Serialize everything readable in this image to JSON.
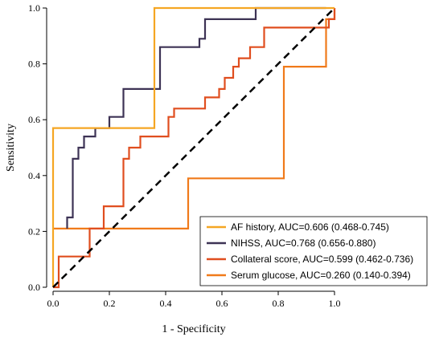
{
  "chart_data": {
    "type": "line",
    "xlabel": "1 - Specificity",
    "ylabel": "Sensitivity",
    "xlim": [
      0,
      1
    ],
    "ylim": [
      0,
      1
    ],
    "xticks": [
      "0.0",
      "0.2",
      "0.4",
      "0.6",
      "0.8",
      "1.0"
    ],
    "yticks": [
      "0.0",
      "0.2",
      "0.4",
      "0.6",
      "0.8",
      "1.0"
    ],
    "grid": false,
    "legend_position": "bottom-right",
    "reference_line": {
      "style": "dashed",
      "color": "#000000",
      "points": [
        [
          0,
          0
        ],
        [
          1,
          1
        ]
      ]
    },
    "series": [
      {
        "name": "AF history, AUC=0.606 (0.468-0.745)",
        "color": "#F5A623",
        "points": [
          [
            0,
            0
          ],
          [
            0,
            0.57
          ],
          [
            0.36,
            0.57
          ],
          [
            0.36,
            1.0
          ],
          [
            1.0,
            1.0
          ]
        ]
      },
      {
        "name": "NIHSS, AUC=0.768 (0.656-0.880)",
        "color": "#3D3355",
        "points": [
          [
            0.05,
            0.21
          ],
          [
            0.05,
            0.25
          ],
          [
            0.07,
            0.25
          ],
          [
            0.07,
            0.46
          ],
          [
            0.09,
            0.46
          ],
          [
            0.09,
            0.5
          ],
          [
            0.11,
            0.5
          ],
          [
            0.11,
            0.54
          ],
          [
            0.15,
            0.54
          ],
          [
            0.15,
            0.57
          ],
          [
            0.2,
            0.57
          ],
          [
            0.2,
            0.61
          ],
          [
            0.25,
            0.61
          ],
          [
            0.25,
            0.71
          ],
          [
            0.38,
            0.71
          ],
          [
            0.38,
            0.86
          ],
          [
            0.52,
            0.86
          ],
          [
            0.52,
            0.89
          ],
          [
            0.54,
            0.89
          ],
          [
            0.54,
            0.96
          ],
          [
            0.72,
            0.96
          ],
          [
            0.72,
            1.0
          ],
          [
            0.97,
            1.0
          ]
        ]
      },
      {
        "name": "Collateral score, AUC=0.599 (0.462-0.736)",
        "color": "#E04E1F",
        "points": [
          [
            0,
            0
          ],
          [
            0.02,
            0
          ],
          [
            0.02,
            0.11
          ],
          [
            0.13,
            0.11
          ],
          [
            0.13,
            0.21
          ],
          [
            0.18,
            0.21
          ],
          [
            0.18,
            0.29
          ],
          [
            0.25,
            0.29
          ],
          [
            0.25,
            0.46
          ],
          [
            0.27,
            0.46
          ],
          [
            0.27,
            0.5
          ],
          [
            0.31,
            0.5
          ],
          [
            0.31,
            0.54
          ],
          [
            0.41,
            0.54
          ],
          [
            0.41,
            0.61
          ],
          [
            0.43,
            0.61
          ],
          [
            0.43,
            0.64
          ],
          [
            0.54,
            0.64
          ],
          [
            0.54,
            0.68
          ],
          [
            0.59,
            0.68
          ],
          [
            0.59,
            0.71
          ],
          [
            0.61,
            0.71
          ],
          [
            0.61,
            0.75
          ],
          [
            0.64,
            0.75
          ],
          [
            0.64,
            0.79
          ],
          [
            0.66,
            0.79
          ],
          [
            0.66,
            0.82
          ],
          [
            0.7,
            0.82
          ],
          [
            0.7,
            0.86
          ],
          [
            0.75,
            0.86
          ],
          [
            0.75,
            0.93
          ],
          [
            0.98,
            0.93
          ],
          [
            0.98,
            0.96
          ],
          [
            1.0,
            0.96
          ],
          [
            1.0,
            1.0
          ]
        ]
      },
      {
        "name": "Serum glucose, AUC=0.260 (0.140-0.394)",
        "color": "#F07A1A",
        "points": [
          [
            0,
            0.21
          ],
          [
            0.48,
            0.21
          ],
          [
            0.48,
            0.39
          ],
          [
            0.82,
            0.39
          ],
          [
            0.82,
            0.79
          ],
          [
            0.97,
            0.79
          ],
          [
            0.97,
            0.96
          ],
          [
            1.0,
            0.96
          ],
          [
            1.0,
            1.0
          ]
        ]
      }
    ]
  }
}
